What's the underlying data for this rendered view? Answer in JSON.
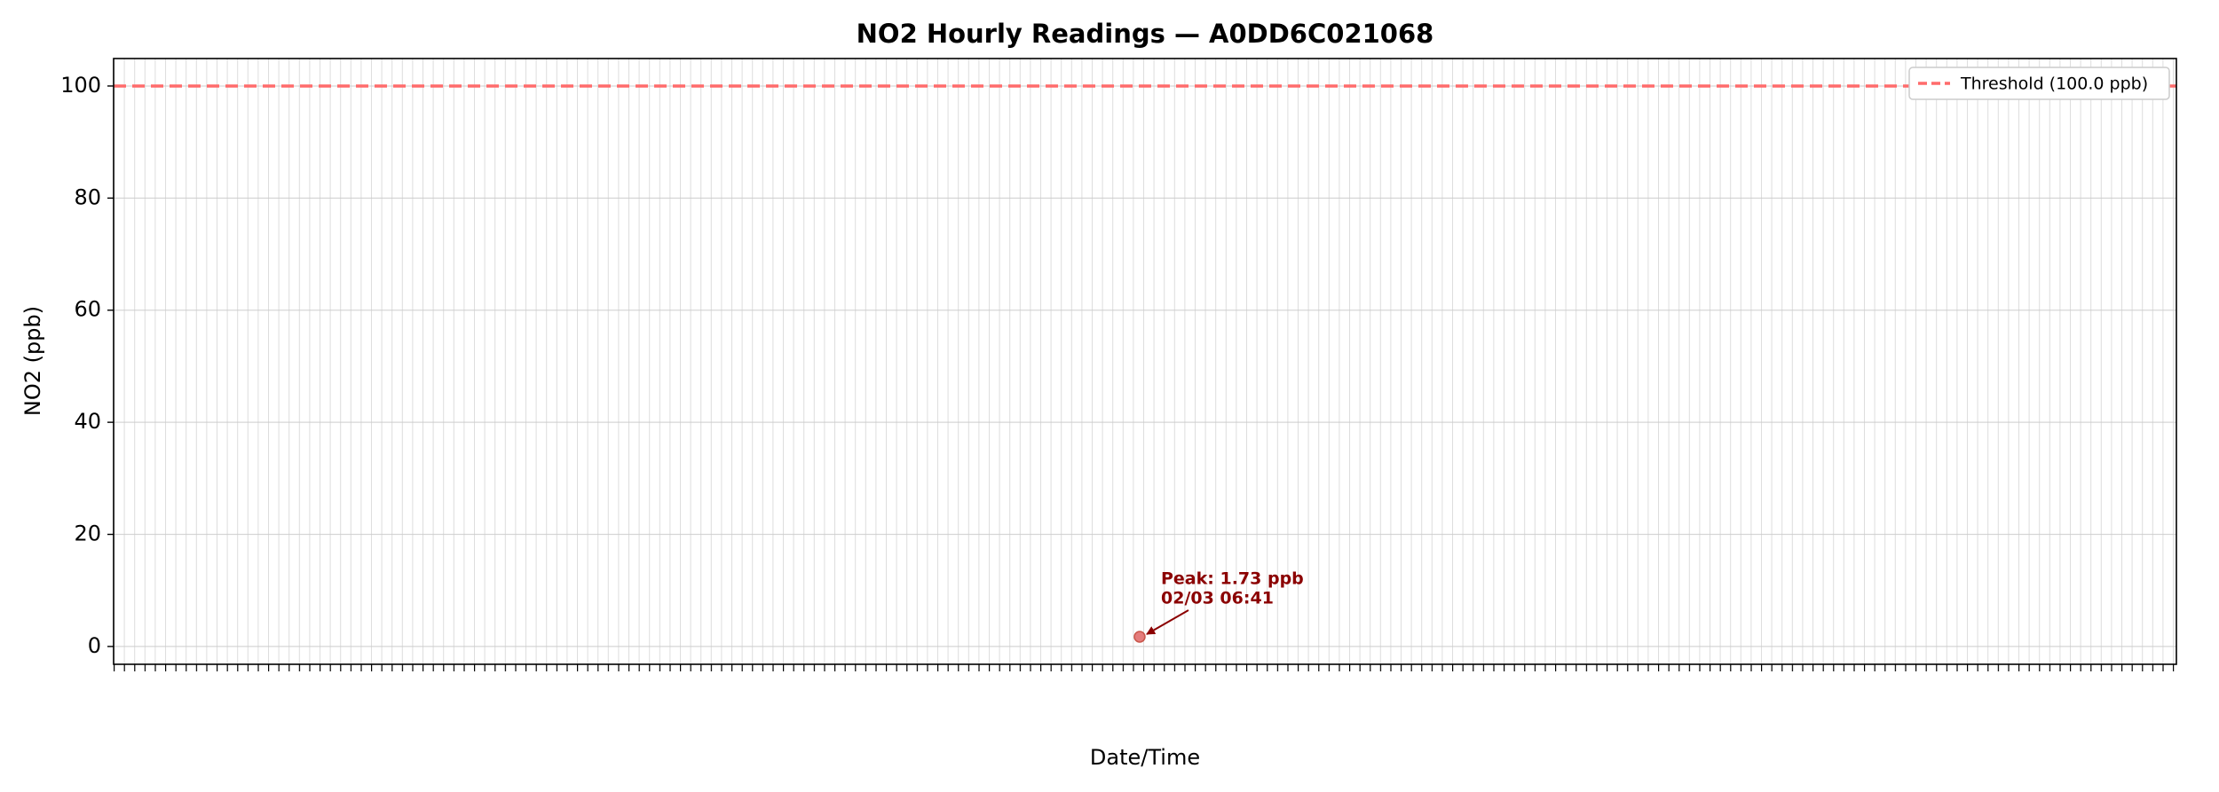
{
  "chart_data": {
    "type": "scatter",
    "title": "NO2 Hourly Readings — A0DD6C021068",
    "xlabel": "Date/Time",
    "ylabel": "NO2 (ppb)",
    "ylim": [
      -3.18,
      104.9
    ],
    "yticks": [
      0,
      20,
      40,
      60,
      80,
      100
    ],
    "grid": true,
    "series": [
      {
        "name": "NO2",
        "color": "#e06666",
        "values": [
          1.73
        ]
      }
    ],
    "threshold": {
      "value": 100,
      "label": "Threshold (100.0 ppb)",
      "color": "#ff6b6b"
    },
    "annotation": {
      "lines": [
        "Peak: 1.73 ppb",
        "02/03 06:41"
      ],
      "color": "#8b0000"
    },
    "legend": "upper right"
  }
}
